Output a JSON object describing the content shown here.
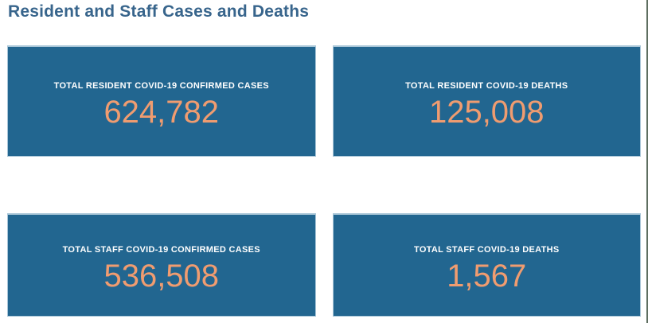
{
  "title": "Resident and Staff Cases and Deaths",
  "cards": [
    {
      "label": "TOTAL RESIDENT COVID-19 CONFIRMED CASES",
      "value": "624,782"
    },
    {
      "label": "TOTAL RESIDENT COVID-19 DEATHS",
      "value": "125,008"
    },
    {
      "label": "TOTAL STAFF COVID-19 CONFIRMED CASES",
      "value": "536,508"
    },
    {
      "label": "TOTAL STAFF COVID-19 DEATHS",
      "value": "1,567"
    }
  ],
  "colors": {
    "card_background": "#226690",
    "card_border": "#a9c6d8",
    "value_text": "#f09c70",
    "title_text": "#38658c",
    "label_text": "#ffffff",
    "page_edge_line": "#5e6e60"
  },
  "chart_data": {
    "type": "table",
    "title": "Resident and Staff Cases and Deaths",
    "categories": [
      "TOTAL RESIDENT COVID-19 CONFIRMED CASES",
      "TOTAL RESIDENT COVID-19 DEATHS",
      "TOTAL STAFF COVID-19 CONFIRMED CASES",
      "TOTAL STAFF COVID-19 DEATHS"
    ],
    "values": [
      624782,
      125008,
      536508,
      1567
    ],
    "layout": "2x2 KPI tile grid, title top-left, no axes, no legend"
  }
}
